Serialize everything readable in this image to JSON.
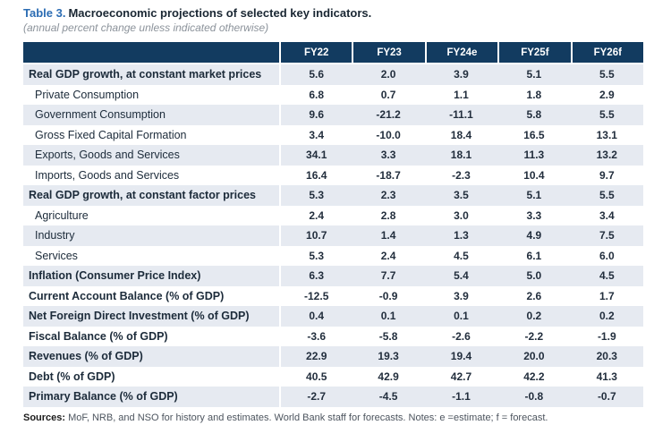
{
  "title": {
    "prefix": "Table 3.",
    "rest": "Macroeconomic projections of selected key indicators."
  },
  "subtitle": "(annual percent change unless indicated otherwise)",
  "table": {
    "columns": [
      "FY22",
      "FY23",
      "FY24e",
      "FY25f",
      "FY26f"
    ],
    "rows": [
      {
        "label": "Real GDP growth, at constant market prices",
        "bold": true,
        "values": [
          "5.6",
          "2.0",
          "3.9",
          "5.1",
          "5.5"
        ]
      },
      {
        "label": "Private Consumption",
        "bold": false,
        "values": [
          "6.8",
          "0.7",
          "1.1",
          "1.8",
          "2.9"
        ]
      },
      {
        "label": "Government Consumption",
        "bold": false,
        "values": [
          "9.6",
          "-21.2",
          "-11.1",
          "5.8",
          "5.5"
        ]
      },
      {
        "label": "Gross Fixed Capital Formation",
        "bold": false,
        "values": [
          "3.4",
          "-10.0",
          "18.4",
          "16.5",
          "13.1"
        ]
      },
      {
        "label": "Exports, Goods and Services",
        "bold": false,
        "values": [
          "34.1",
          "3.3",
          "18.1",
          "11.3",
          "13.2"
        ]
      },
      {
        "label": "Imports, Goods and Services",
        "bold": false,
        "values": [
          "16.4",
          "-18.7",
          "-2.3",
          "10.4",
          "9.7"
        ]
      },
      {
        "label": "Real GDP growth, at constant factor prices",
        "bold": true,
        "values": [
          "5.3",
          "2.3",
          "3.5",
          "5.1",
          "5.5"
        ]
      },
      {
        "label": "Agriculture",
        "bold": false,
        "values": [
          "2.4",
          "2.8",
          "3.0",
          "3.3",
          "3.4"
        ]
      },
      {
        "label": "Industry",
        "bold": false,
        "values": [
          "10.7",
          "1.4",
          "1.3",
          "4.9",
          "7.5"
        ]
      },
      {
        "label": "Services",
        "bold": false,
        "values": [
          "5.3",
          "2.4",
          "4.5",
          "6.1",
          "6.0"
        ]
      },
      {
        "label": "Inflation (Consumer Price Index)",
        "bold": true,
        "values": [
          "6.3",
          "7.7",
          "5.4",
          "5.0",
          "4.5"
        ]
      },
      {
        "label": "Current Account Balance (% of GDP)",
        "bold": true,
        "values": [
          "-12.5",
          "-0.9",
          "3.9",
          "2.6",
          "1.7"
        ]
      },
      {
        "label": "Net Foreign Direct Investment (% of GDP)",
        "bold": true,
        "values": [
          "0.4",
          "0.1",
          "0.1",
          "0.2",
          "0.2"
        ]
      },
      {
        "label": "Fiscal Balance (% of GDP)",
        "bold": true,
        "values": [
          "-3.6",
          "-5.8",
          "-2.6",
          "-2.2",
          "-1.9"
        ]
      },
      {
        "label": "Revenues (% of GDP)",
        "bold": true,
        "values": [
          "22.9",
          "19.3",
          "19.4",
          "20.0",
          "20.3"
        ]
      },
      {
        "label": "Debt (% of GDP)",
        "bold": true,
        "values": [
          "40.5",
          "42.9",
          "42.7",
          "42.2",
          "41.3"
        ]
      },
      {
        "label": "Primary Balance (% of GDP)",
        "bold": true,
        "values": [
          "-2.7",
          "-4.5",
          "-1.1",
          "-0.8",
          "-0.7"
        ]
      }
    ]
  },
  "footer": {
    "sources_label": "Sources:",
    "sources_text": "MoF, NRB, and NSO for history and estimates. World Bank staff for forecasts. Notes: e =estimate; f = forecast."
  },
  "colors": {
    "header_background": "#123B60",
    "header_text": "#FFFFFF",
    "row_shade": "#E6EAF1",
    "title_accent": "#2B6CB3",
    "body_text": "#1C2B3A"
  }
}
